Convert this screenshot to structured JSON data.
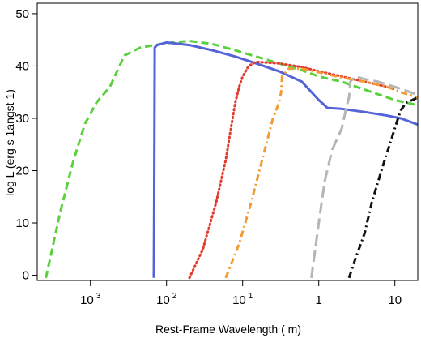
{
  "chart_data": {
    "type": "line",
    "xlabel": "Rest-Frame Wavelength ( m)",
    "ylabel": "log L (erg s 1angst 1)",
    "x_scale": "log",
    "xlim": [
      0.0002,
      20
    ],
    "ylim": [
      -1,
      52
    ],
    "x_ticks": [
      {
        "value": 0.001,
        "base": "10",
        "exp": "3"
      },
      {
        "value": 0.01,
        "base": "10",
        "exp": "2"
      },
      {
        "value": 0.1,
        "base": "10",
        "exp": "1"
      },
      {
        "value": 1,
        "base": "1",
        "exp": ""
      },
      {
        "value": 10,
        "base": "10",
        "exp": ""
      }
    ],
    "y_ticks": [
      "0",
      "10",
      "20",
      "30",
      "40",
      "50"
    ],
    "grid": false,
    "legend": "none",
    "series": [
      {
        "color": "#5ad13c",
        "style": "dashed",
        "x": [
          0.00026,
          0.0004,
          0.0006,
          0.00085,
          0.0012,
          0.0018,
          0.0028,
          0.0045,
          0.007,
          0.012,
          0.02,
          0.04,
          0.08,
          0.15,
          0.3,
          0.6,
          1,
          2,
          5,
          10,
          20
        ],
        "y": [
          -0.5,
          12,
          22,
          29,
          33,
          36,
          42,
          43.5,
          44,
          44.5,
          44.8,
          44.2,
          43,
          41.8,
          40.5,
          39.2,
          38,
          37,
          35,
          33.5,
          32.5
        ]
      },
      {
        "color": "#5463d8",
        "style": "solid",
        "x": [
          0.0068,
          0.0069,
          0.007,
          0.0075,
          0.01,
          0.02,
          0.04,
          0.08,
          0.15,
          0.3,
          0.6,
          1,
          1.3,
          2,
          4,
          8,
          12,
          20
        ],
        "y": [
          -0.5,
          20,
          43.5,
          44,
          44.5,
          44,
          43,
          41.8,
          40.5,
          39,
          37,
          33.5,
          32,
          31.8,
          31.2,
          30.5,
          30,
          28.8
        ]
      },
      {
        "color": "#e33a2c",
        "style": "dotted",
        "x": [
          0.02,
          0.03,
          0.045,
          0.06,
          0.07,
          0.08,
          0.09,
          0.1,
          0.12,
          0.15,
          0.3,
          0.6,
          1,
          2,
          4,
          8,
          10
        ],
        "y": [
          -0.5,
          5,
          14,
          22,
          28,
          33,
          36,
          38,
          40,
          40.8,
          40.5,
          39.8,
          39,
          38,
          37,
          36,
          35.5
        ]
      },
      {
        "color": "#f29b33",
        "style": "dash-dot",
        "x": [
          0.06,
          0.09,
          0.13,
          0.18,
          0.25,
          0.3,
          0.32,
          0.33,
          0.4,
          0.6,
          1,
          2,
          4,
          8,
          12,
          20
        ],
        "y": [
          -0.5,
          6,
          14,
          22,
          30,
          33,
          35,
          38,
          39.5,
          39.5,
          38.8,
          37.8,
          37,
          36,
          35,
          34
        ]
      },
      {
        "color": "#b5b5b5",
        "style": "long-dash",
        "x": [
          0.8,
          0.9,
          1,
          1.2,
          1.5,
          2,
          2.3,
          2.5,
          2.6,
          3,
          4,
          6,
          10,
          20
        ],
        "y": [
          -0.5,
          5,
          10,
          18,
          24,
          28,
          32,
          34,
          37,
          38,
          37.5,
          37,
          36,
          34.5
        ]
      },
      {
        "color": "#111111",
        "style": "dash-dot",
        "x": [
          2.5,
          3,
          4,
          5,
          7,
          9,
          11,
          12,
          14,
          17,
          20
        ],
        "y": [
          -0.5,
          3,
          8,
          14,
          21,
          26,
          30,
          31.5,
          33,
          33.5,
          34
        ]
      }
    ]
  }
}
